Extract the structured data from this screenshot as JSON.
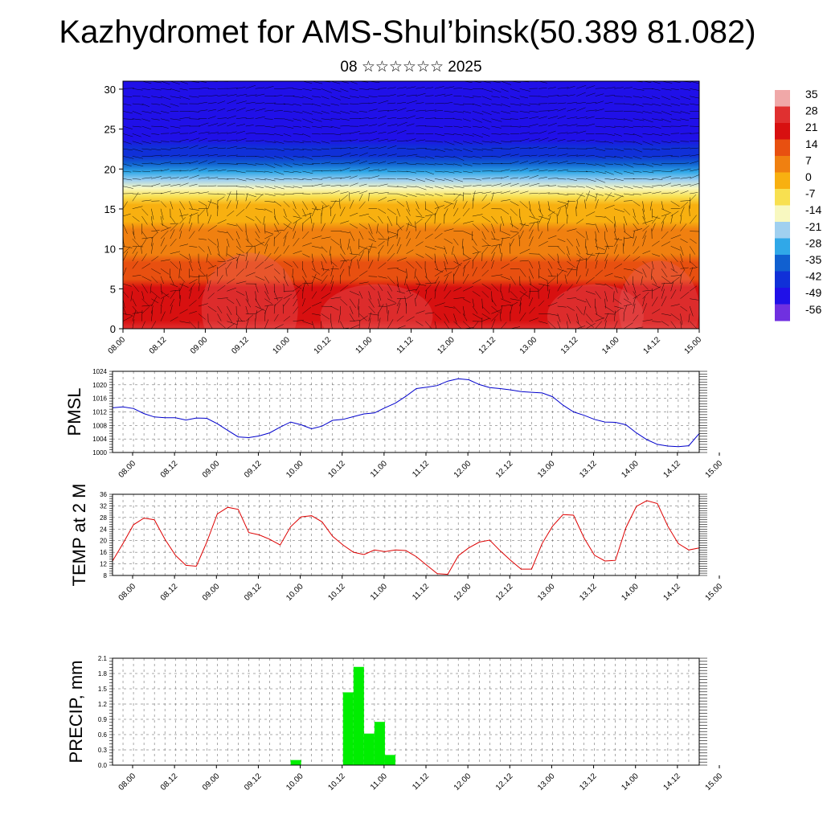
{
  "title": "Kazhydromet for AMS-Shul’binsk(50.389 81.082)",
  "subtitle": "08 ☆☆☆☆☆☆ 2025",
  "chart_data": [
    {
      "type": "heatmap",
      "name": "vertical-section",
      "x_tick_labels": [
        "08.00",
        "08.12",
        "09.00",
        "09.12",
        "10.00",
        "10.12",
        "11.00",
        "11.12",
        "12.00",
        "12.12",
        "13.00",
        "13.12",
        "14.00",
        "14.12",
        "15.00"
      ],
      "y_tick_labels": [
        "0",
        "5",
        "10",
        "15",
        "20",
        "25",
        "30"
      ],
      "ylim": [
        0,
        31
      ],
      "colorbar_labels": [
        "35",
        "28",
        "21",
        "14",
        "7",
        "0",
        "-7",
        "-14",
        "-21",
        "-28",
        "-35",
        "-42",
        "-49",
        "-56"
      ],
      "colorbar_colors": [
        "#f0a8a8",
        "#e03030",
        "#d81010",
        "#e85010",
        "#f08010",
        "#f8b010",
        "#f8e050",
        "#f8f8c0",
        "#a0d0f0",
        "#30a8e8",
        "#1060d0",
        "#1030d8",
        "#2010e8",
        "#7030e0"
      ],
      "vmin": -60,
      "vmax": 38,
      "profile_levels": [
        0,
        5,
        10,
        15,
        18,
        21,
        24,
        27,
        31
      ],
      "profile_temps": [
        28,
        20,
        10,
        0,
        -18,
        -40,
        -52,
        -50,
        -56
      ],
      "grid": true
    },
    {
      "type": "line",
      "name": "pmsl",
      "ylabel": "PMSL",
      "x_tick_labels": [
        "08.00",
        "08.12",
        "09.00",
        "09.12",
        "10.00",
        "10.12",
        "11.00",
        "11.12",
        "12.00",
        "12.12",
        "13.00",
        "13.12",
        "14.00",
        "14.12",
        "15.00"
      ],
      "y_tick_labels": [
        "1000",
        "1004",
        "1008",
        "1012",
        "1016",
        "1020",
        "1024"
      ],
      "ylim": [
        1000,
        1024
      ],
      "color": "#0000cc",
      "x_hours": [
        0,
        3,
        6,
        9,
        12,
        15,
        18,
        21,
        24,
        27,
        30,
        33,
        36,
        39,
        42,
        45,
        48,
        51,
        54,
        57,
        60,
        63,
        66,
        69,
        72,
        75,
        78,
        81,
        84,
        87,
        90,
        93,
        96,
        99,
        102,
        105,
        108,
        111,
        114,
        117,
        120,
        123,
        126,
        129,
        132,
        135,
        138,
        141,
        144,
        147,
        150,
        153,
        156,
        159,
        162,
        165,
        168
      ],
      "values": [
        1013.2,
        1013.5,
        1013.0,
        1011.5,
        1010.5,
        1010.3,
        1010.3,
        1009.6,
        1010.2,
        1010.1,
        1008.5,
        1006.5,
        1004.6,
        1004.4,
        1004.9,
        1005.8,
        1007.5,
        1009.0,
        1008.2,
        1007.0,
        1007.8,
        1009.5,
        1009.8,
        1010.6,
        1011.4,
        1011.7,
        1013.2,
        1014.6,
        1016.6,
        1018.9,
        1019.3,
        1019.8,
        1021.1,
        1021.8,
        1021.5,
        1020.1,
        1019.2,
        1018.9,
        1018.5,
        1018.0,
        1017.8,
        1017.6,
        1016.5,
        1014.0,
        1012.0,
        1011.0,
        1009.8,
        1009.0,
        1008.9,
        1008.2,
        1005.8,
        1003.8,
        1002.4,
        1001.9,
        1001.7,
        1002.0,
        1005.6
      ]
    },
    {
      "type": "line",
      "name": "temp-2m",
      "ylabel": "TEMP at 2 M",
      "x_tick_labels": [
        "08.00",
        "08.12",
        "09.00",
        "09.12",
        "10.00",
        "10.12",
        "11.00",
        "11.12",
        "12.00",
        "12.12",
        "13.00",
        "13.12",
        "14.00",
        "14.12",
        "15.00"
      ],
      "y_tick_labels": [
        "8",
        "12",
        "16",
        "20",
        "24",
        "28",
        "32",
        "36"
      ],
      "ylim": [
        8,
        36
      ],
      "color": "#dd0000",
      "x_hours": [
        0,
        3,
        6,
        9,
        12,
        15,
        18,
        21,
        24,
        27,
        30,
        33,
        36,
        39,
        42,
        45,
        48,
        51,
        54,
        57,
        60,
        63,
        66,
        69,
        72,
        75,
        78,
        81,
        84,
        87,
        90,
        93,
        96,
        99,
        102,
        105,
        108,
        111,
        114,
        117,
        120,
        123,
        126,
        129,
        132,
        135,
        138,
        141,
        144,
        147,
        150,
        153,
        156,
        159,
        162,
        165,
        168
      ],
      "values": [
        13.0,
        19.0,
        25.5,
        27.8,
        27.2,
        20.5,
        15.0,
        11.5,
        11.2,
        19.5,
        29.2,
        31.5,
        30.8,
        22.8,
        22.0,
        20.5,
        18.5,
        24.8,
        28.2,
        28.6,
        26.5,
        21.5,
        18.5,
        16.0,
        15.2,
        16.8,
        16.2,
        16.8,
        16.6,
        14.5,
        11.5,
        8.6,
        8.4,
        14.8,
        17.5,
        19.5,
        20.2,
        16.5,
        13.2,
        10.2,
        10.2,
        19.0,
        25.0,
        29.0,
        28.8,
        21.0,
        15.0,
        13.0,
        13.2,
        24.5,
        31.8,
        33.8,
        32.8,
        25.0,
        19.0,
        16.8,
        17.5
      ]
    },
    {
      "type": "bar",
      "name": "precip",
      "ylabel": "PRECIP, mm",
      "x_tick_labels": [
        "08.00",
        "08.12",
        "09.00",
        "09.12",
        "10.00",
        "10.12",
        "11.00",
        "11.12",
        "12.00",
        "12.12",
        "13.00",
        "13.12",
        "14.00",
        "14.12",
        "15.00"
      ],
      "y_tick_labels": [
        "0.0",
        "0.3",
        "0.6",
        "0.9",
        "1.2",
        "1.5",
        "1.8",
        "2.1"
      ],
      "ylim": [
        0,
        2.1
      ],
      "color": "#00ee00",
      "x_hours": [
        51,
        66,
        69,
        72,
        75,
        78,
        81
      ],
      "values": [
        0.1,
        1.43,
        1.93,
        0.62,
        0.85,
        0.2,
        0.0
      ]
    }
  ]
}
